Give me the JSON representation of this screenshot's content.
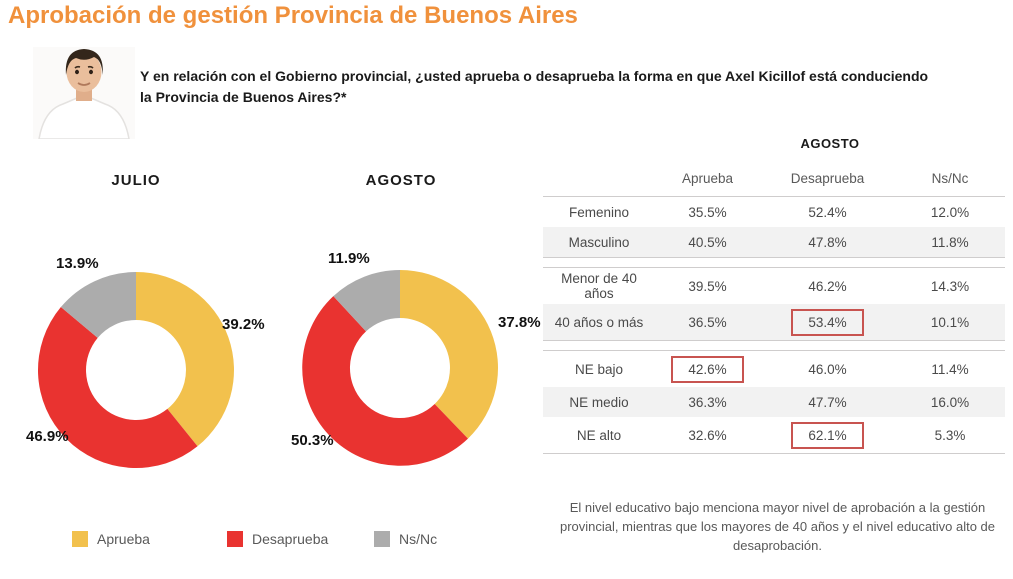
{
  "page": {
    "title": "Aprobación de gestión Provincia de Buenos Aires"
  },
  "question": {
    "line1": "Y en relación con el Gobierno provincial, ¿usted aprueba o desaprueba la forma en que Axel Kicillof está conduciendo",
    "line2": "la Provincia de Buenos Aires?*"
  },
  "colors": {
    "title_orange": "#F0913C",
    "aprueba_yellow": "#F2C14D",
    "desaprueba_red": "#E93330",
    "nsnc_gray": "#ACACAC",
    "highlight_box_red": "#C85450",
    "row_stripe": "#F2F2F2"
  },
  "chart_data": [
    {
      "type": "pie",
      "variant": "donut",
      "title": "JULIO",
      "labels": [
        "Aprueba",
        "Desaprueba",
        "Ns/Nc"
      ],
      "values": [
        39.2,
        46.9,
        13.9
      ],
      "display_values": [
        "39.2%",
        "46.9%",
        "13.9%"
      ],
      "colors": [
        "#F2C14D",
        "#E93330",
        "#ACACAC"
      ],
      "start_angle_deg": 0,
      "direction": "clockwise",
      "hole_ratio": 0.51,
      "legend_position": "bottom"
    },
    {
      "type": "pie",
      "variant": "donut",
      "title": "AGOSTO",
      "labels": [
        "Aprueba",
        "Desaprueba",
        "Ns/Nc"
      ],
      "values": [
        37.8,
        50.3,
        11.9
      ],
      "display_values": [
        "37.8%",
        "50.3%",
        "11.9%"
      ],
      "colors": [
        "#F2C14D",
        "#E93330",
        "#ACACAC"
      ],
      "start_angle_deg": 0,
      "direction": "clockwise",
      "hole_ratio": 0.51,
      "legend_position": "bottom"
    }
  ],
  "legend": {
    "items": [
      {
        "label": "Aprueba",
        "color": "#F2C14D"
      },
      {
        "label": "Desaprueba",
        "color": "#E93330"
      },
      {
        "label": "Ns/Nc",
        "color": "#ACACAC"
      }
    ]
  },
  "table": {
    "title": "AGOSTO",
    "columns": [
      "Aprueba",
      "Desaprueba",
      "Ns/Nc"
    ],
    "rows": [
      {
        "label": "Femenino",
        "values": [
          "35.5%",
          "52.4%",
          "12.0%"
        ]
      },
      {
        "label": "Masculino",
        "values": [
          "40.5%",
          "47.8%",
          "11.8%"
        ]
      },
      {
        "label": "Menor de 40 años",
        "values": [
          "39.5%",
          "46.2%",
          "14.3%"
        ]
      },
      {
        "label": "40 años o más",
        "values": [
          "36.5%",
          "53.4%",
          "10.1%"
        ],
        "highlighted_column": "Desaprueba"
      },
      {
        "label": "NE bajo",
        "values": [
          "42.6%",
          "46.0%",
          "11.4%"
        ],
        "highlighted_column": "Aprueba"
      },
      {
        "label": "NE medio",
        "values": [
          "36.3%",
          "47.7%",
          "16.0%"
        ]
      },
      {
        "label": "NE alto",
        "values": [
          "32.6%",
          "62.1%",
          "5.3%"
        ],
        "highlighted_column": "Desaprueba"
      }
    ]
  },
  "note": "El nivel educativo bajo menciona mayor nivel de aprobación a la gestión provincial, mientras que los mayores de 40 años y el nivel educativo alto de desaprobación."
}
